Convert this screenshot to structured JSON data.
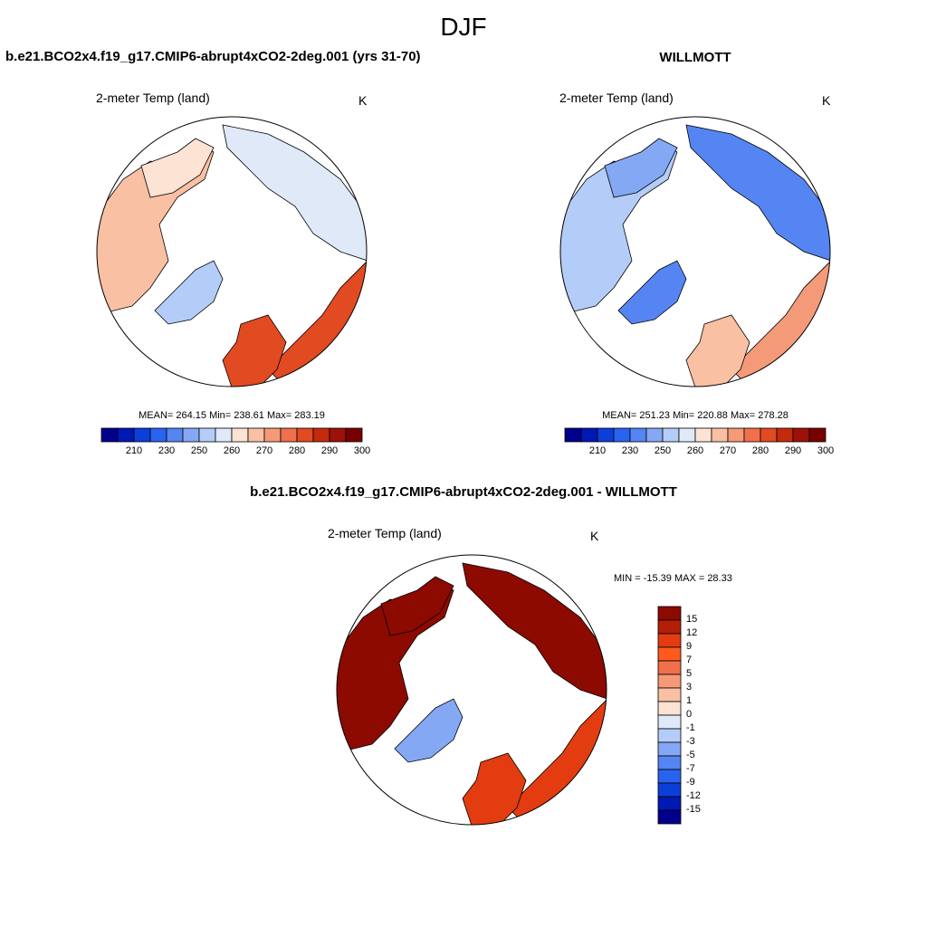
{
  "figure": {
    "title": "DJF",
    "colors": {
      "ocean_bg": "#ffffff",
      "coast": "#000000",
      "abs_palette": [
        "#00008c",
        "#0018b4",
        "#0c3fd8",
        "#2a62f0",
        "#5585f2",
        "#85a8f5",
        "#b4cdf8",
        "#dfe9f8",
        "#fde3d3",
        "#f9c0a3",
        "#f59a78",
        "#f0704d",
        "#e24a22",
        "#c42a0c",
        "#9c1206",
        "#780000"
      ],
      "diff_palette": [
        "#00008c",
        "#0018b4",
        "#0c3fd8",
        "#2a62f0",
        "#5585f2",
        "#85a8f5",
        "#b4cdf8",
        "#dfe9f8",
        "#fde3d3",
        "#f9c0a3",
        "#f59a78",
        "#f0704d",
        "#ff5a1e",
        "#e23c10",
        "#b41e06",
        "#8c0a00"
      ]
    }
  },
  "chart_data": [
    {
      "type": "heatmap",
      "subtype": "polar-stereographic-map",
      "panel": "model",
      "title": "b.e21.BCO2x4.f19_g17.CMIP6-abrupt4xCO2-2deg.001 (yrs 31-70)",
      "variable": "2-meter Temp (land)",
      "units": "K",
      "stats": {
        "mean": 264.15,
        "min": 238.61,
        "max": 283.19
      },
      "stats_text": "MEAN= 264.15  Min= 238.61  Max= 283.19",
      "colorbar_levels": [
        205,
        210,
        215,
        220,
        225,
        230,
        240,
        245,
        250,
        255,
        260,
        265,
        270,
        275,
        280,
        285,
        290,
        295,
        300
      ],
      "colorbar_tick_labels": [
        "210",
        "230",
        "250",
        "260",
        "270",
        "280",
        "290",
        "300"
      ],
      "regional_values": {
        "north_america": 262,
        "greenland": 247,
        "siberia": 252,
        "canadian_arctic": 258,
        "europe": 277,
        "east_asia": 279
      }
    },
    {
      "type": "heatmap",
      "subtype": "polar-stereographic-map",
      "panel": "obs",
      "title": "WILLMOTT",
      "variable": "2-meter Temp (land)",
      "units": "K",
      "stats": {
        "mean": 251.23,
        "min": 220.88,
        "max": 278.28
      },
      "stats_text": "MEAN= 251.23  Min= 220.88  Max= 278.28",
      "colorbar_tick_labels": [
        "210",
        "230",
        "250",
        "260",
        "270",
        "280",
        "290",
        "300"
      ],
      "regional_values": {
        "north_america": 248,
        "greenland": 236,
        "siberia": 238,
        "canadian_arctic": 242,
        "europe": 263,
        "east_asia": 266
      }
    },
    {
      "type": "heatmap",
      "subtype": "polar-stereographic-map",
      "panel": "difference",
      "title": "b.e21.BCO2x4.f19_g17.CMIP6-abrupt4xCO2-2deg.001 - WILLMOTT",
      "variable": "2-meter Temp (land)",
      "units": "K",
      "stats": {
        "min": -15.39,
        "max": 28.33
      },
      "stats_text": "MIN = -15.39 MAX =  28.33",
      "colorbar_tick_labels": [
        "15",
        "12",
        "9",
        "7",
        "5",
        "3",
        "1",
        "0",
        "-1",
        "-3",
        "-5",
        "-7",
        "-9",
        "-12",
        "-15"
      ],
      "regional_values": {
        "north_america": 17,
        "greenland": -4,
        "siberia": 18,
        "canadian_arctic": 16,
        "europe": 12,
        "east_asia": 11
      }
    }
  ]
}
